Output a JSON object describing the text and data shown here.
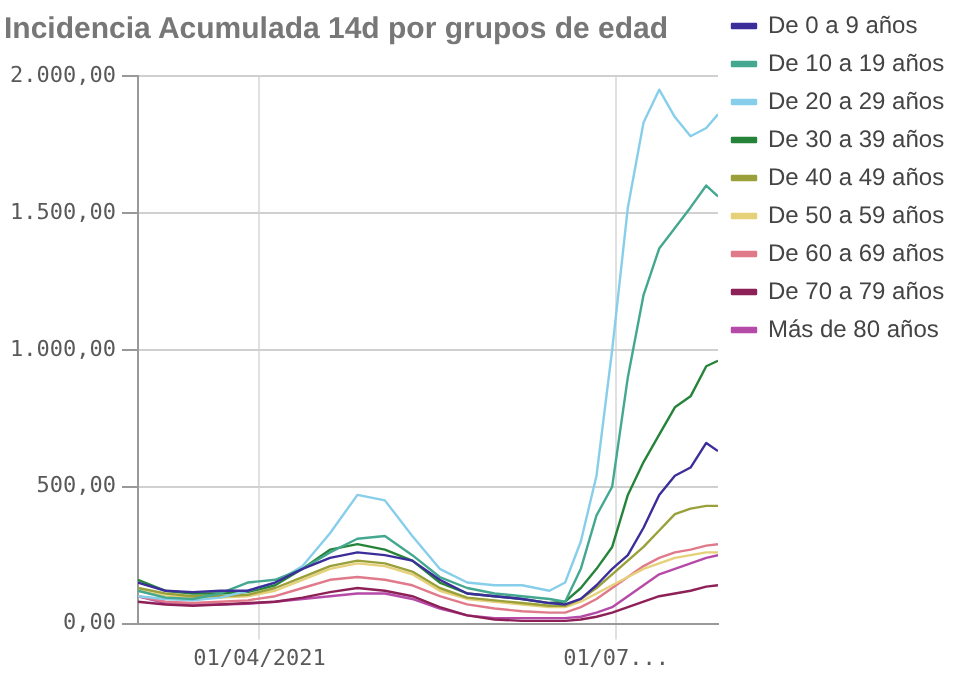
{
  "chart_data": {
    "type": "line",
    "title": "Incidencia Acumulada 14d por grupos de edad",
    "x": [
      "2021-03-01",
      "2021-03-08",
      "2021-03-15",
      "2021-03-22",
      "2021-03-29",
      "2021-04-05",
      "2021-04-12",
      "2021-04-19",
      "2021-04-26",
      "2021-05-03",
      "2021-05-10",
      "2021-05-17",
      "2021-05-24",
      "2021-05-31",
      "2021-06-07",
      "2021-06-14",
      "2021-06-18",
      "2021-06-22",
      "2021-06-26",
      "2021-06-30",
      "2021-07-04",
      "2021-07-08",
      "2021-07-12",
      "2021-07-16",
      "2021-07-20",
      "2021-07-24",
      "2021-07-27"
    ],
    "series": [
      {
        "name": "De 0 a 9 años",
        "color": "#3b2e9a",
        "values": [
          150,
          120,
          115,
          120,
          120,
          150,
          200,
          240,
          260,
          250,
          230,
          160,
          110,
          100,
          90,
          75,
          70,
          90,
          140,
          200,
          250,
          350,
          470,
          540,
          570,
          660,
          630
        ]
      },
      {
        "name": "De 10 a 19 años",
        "color": "#43a88f",
        "values": [
          120,
          95,
          90,
          110,
          150,
          160,
          200,
          260,
          310,
          320,
          250,
          170,
          130,
          110,
          100,
          90,
          80,
          200,
          395,
          500,
          900,
          1200,
          1370,
          1445,
          1520,
          1600,
          1560
        ]
      },
      {
        "name": "De 20 a 29 años",
        "color": "#87ceeb",
        "values": [
          100,
          90,
          85,
          95,
          120,
          150,
          210,
          330,
          470,
          450,
          320,
          200,
          150,
          140,
          140,
          120,
          150,
          300,
          540,
          1000,
          1520,
          1830,
          1950,
          1850,
          1780,
          1810,
          1860
        ]
      },
      {
        "name": "De 30 a 39 años",
        "color": "#26843a",
        "values": [
          160,
          120,
          110,
          110,
          115,
          140,
          200,
          270,
          290,
          270,
          230,
          150,
          110,
          100,
          90,
          75,
          80,
          130,
          200,
          280,
          470,
          590,
          690,
          790,
          830,
          940,
          960
        ]
      },
      {
        "name": "De 40 a 49 años",
        "color": "#9aa03a",
        "values": [
          130,
          110,
          100,
          100,
          105,
          130,
          170,
          210,
          230,
          220,
          190,
          130,
          95,
          85,
          75,
          65,
          65,
          90,
          130,
          180,
          230,
          280,
          340,
          400,
          420,
          430,
          430
        ]
      },
      {
        "name": "De 50 a 59 años",
        "color": "#e6d07a",
        "values": [
          120,
          100,
          95,
          95,
          100,
          120,
          160,
          200,
          220,
          210,
          180,
          120,
          90,
          80,
          70,
          60,
          60,
          80,
          110,
          140,
          170,
          200,
          220,
          240,
          250,
          260,
          260
        ]
      },
      {
        "name": "De 60 a 69 años",
        "color": "#e07a8a",
        "values": [
          100,
          80,
          75,
          80,
          85,
          100,
          130,
          160,
          170,
          160,
          140,
          100,
          70,
          55,
          45,
          40,
          40,
          60,
          90,
          130,
          170,
          210,
          240,
          260,
          270,
          285,
          290
        ]
      },
      {
        "name": "De 70 a 79 años",
        "color": "#8e2058",
        "values": [
          80,
          70,
          65,
          70,
          75,
          80,
          95,
          115,
          130,
          120,
          100,
          60,
          30,
          15,
          10,
          10,
          10,
          15,
          25,
          40,
          60,
          80,
          100,
          110,
          120,
          135,
          140
        ]
      },
      {
        "name": "Más de 80 años",
        "color": "#b54aa8",
        "values": [
          100,
          75,
          70,
          70,
          72,
          80,
          90,
          100,
          110,
          110,
          90,
          55,
          30,
          20,
          20,
          20,
          20,
          25,
          40,
          60,
          100,
          140,
          180,
          200,
          220,
          240,
          250
        ]
      }
    ],
    "xlim": [
      "2021-03-01",
      "2021-07-27"
    ],
    "xticks": [
      {
        "value": "2021-04-01",
        "label": "01/04/2021"
      },
      {
        "value": "2021-07-01",
        "label": "01/07..."
      }
    ],
    "ylim": [
      0,
      2000
    ],
    "yticks": [
      {
        "value": 0,
        "label": "0,00"
      },
      {
        "value": 500,
        "label": "500,00"
      },
      {
        "value": 1000,
        "label": "1.000,00"
      },
      {
        "value": 1500,
        "label": "1.500,00"
      },
      {
        "value": 2000,
        "label": "2.000,00"
      }
    ],
    "grid": true,
    "legend": "right",
    "marker": "none",
    "line_style": "solid"
  }
}
